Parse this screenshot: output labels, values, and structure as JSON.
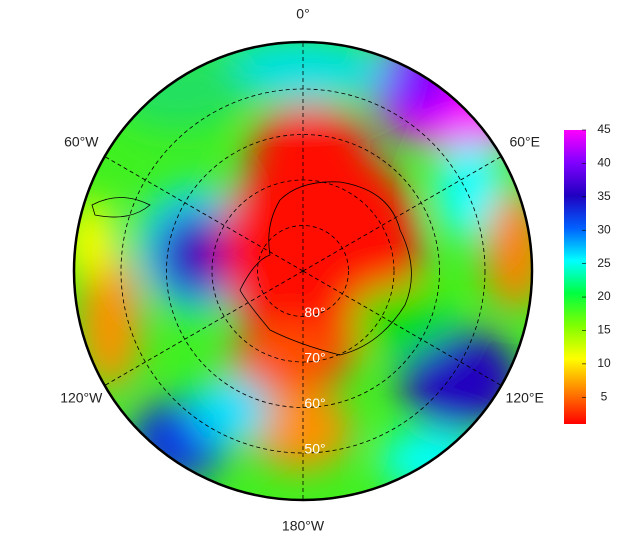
{
  "map": {
    "longitude_labels": [
      {
        "value": 0,
        "label": "0°"
      },
      {
        "value": 60,
        "label": "60°E"
      },
      {
        "value": 120,
        "label": "120°E"
      },
      {
        "value": 180,
        "label": "180°W"
      },
      {
        "value": -120,
        "label": "120°W"
      },
      {
        "value": -60,
        "label": "60°W"
      }
    ],
    "latitude_labels": [
      {
        "value": 80,
        "label": "80°"
      },
      {
        "value": 70,
        "label": "70°"
      },
      {
        "value": 60,
        "label": "60°"
      },
      {
        "value": 50,
        "label": "50°"
      }
    ]
  },
  "colorbar": {
    "lim": [
      1,
      45
    ],
    "ticks": [
      5,
      10,
      15,
      20,
      25,
      30,
      35,
      40,
      45
    ],
    "colors": [
      "#ff0000",
      "#ff8000",
      "#ffff00",
      "#80ff00",
      "#00ff40",
      "#00ffff",
      "#0060ff",
      "#2000c0",
      "#8000ff",
      "#ff00ff"
    ]
  }
}
